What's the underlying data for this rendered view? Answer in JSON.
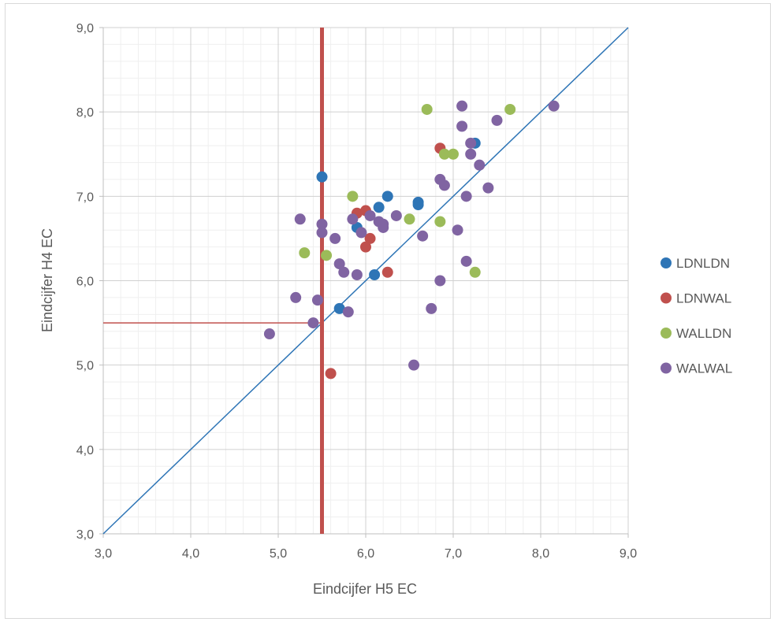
{
  "chart_data": {
    "type": "scatter",
    "title": "",
    "xlabel": "Eindcijfer H5 EC",
    "ylabel": "Eindcijfer H4 EC",
    "xlim": [
      3.0,
      9.0
    ],
    "ylim": [
      3.0,
      9.0
    ],
    "x_ticks": [
      "3,0",
      "4,0",
      "5,0",
      "6,0",
      "7,0",
      "8,0",
      "9,0"
    ],
    "y_ticks": [
      "3,0",
      "4,0",
      "5,0",
      "6,0",
      "7,0",
      "8,0",
      "9,0"
    ],
    "grid": true,
    "legend_position": "right",
    "reference_lines": {
      "diagonal": {
        "from": [
          3.0,
          3.0
        ],
        "to": [
          9.0,
          9.0
        ],
        "color": "#2e75b6"
      },
      "vertical_threshold_x": 5.5,
      "horizontal_threshold_y": 5.5,
      "threshold_color": "#c0504d"
    },
    "series": [
      {
        "name": "LDNLDN",
        "color": "#2e75b6",
        "points": [
          [
            5.5,
            7.23
          ],
          [
            5.7,
            5.67
          ],
          [
            5.9,
            6.63
          ],
          [
            6.1,
            6.07
          ],
          [
            6.15,
            6.87
          ],
          [
            6.25,
            7.0
          ],
          [
            6.6,
            6.93
          ],
          [
            6.6,
            6.9
          ],
          [
            7.25,
            7.63
          ]
        ]
      },
      {
        "name": "LDNWAL",
        "color": "#c0504d",
        "points": [
          [
            5.6,
            4.9
          ],
          [
            5.9,
            6.8
          ],
          [
            6.0,
            6.83
          ],
          [
            6.05,
            6.5
          ],
          [
            6.0,
            6.4
          ],
          [
            6.25,
            6.1
          ],
          [
            6.85,
            7.57
          ]
        ]
      },
      {
        "name": "WALLDN",
        "color": "#9bbb59",
        "points": [
          [
            5.3,
            6.33
          ],
          [
            5.55,
            6.3
          ],
          [
            5.85,
            7.0
          ],
          [
            6.5,
            6.73
          ],
          [
            6.7,
            8.03
          ],
          [
            6.85,
            6.7
          ],
          [
            6.9,
            7.5
          ],
          [
            7.0,
            7.5
          ],
          [
            7.25,
            6.1
          ],
          [
            7.65,
            8.03
          ]
        ]
      },
      {
        "name": "WALWAL",
        "color": "#8064a2",
        "points": [
          [
            4.9,
            5.37
          ],
          [
            5.2,
            5.8
          ],
          [
            5.25,
            6.73
          ],
          [
            5.4,
            5.5
          ],
          [
            5.45,
            5.77
          ],
          [
            5.5,
            6.67
          ],
          [
            5.5,
            6.57
          ],
          [
            5.65,
            6.5
          ],
          [
            5.7,
            6.2
          ],
          [
            5.75,
            6.1
          ],
          [
            5.8,
            5.63
          ],
          [
            5.85,
            6.73
          ],
          [
            5.9,
            6.07
          ],
          [
            5.95,
            6.57
          ],
          [
            6.05,
            6.77
          ],
          [
            6.15,
            6.7
          ],
          [
            6.2,
            6.67
          ],
          [
            6.2,
            6.63
          ],
          [
            6.35,
            6.77
          ],
          [
            6.55,
            5.0
          ],
          [
            6.65,
            6.53
          ],
          [
            6.75,
            5.67
          ],
          [
            6.85,
            6.0
          ],
          [
            6.85,
            7.2
          ],
          [
            6.9,
            7.13
          ],
          [
            7.05,
            6.6
          ],
          [
            7.1,
            8.07
          ],
          [
            7.1,
            7.83
          ],
          [
            7.15,
            7.0
          ],
          [
            7.15,
            6.23
          ],
          [
            7.2,
            7.63
          ],
          [
            7.2,
            7.5
          ],
          [
            7.3,
            7.37
          ],
          [
            7.4,
            7.1
          ],
          [
            7.5,
            7.9
          ],
          [
            8.15,
            8.07
          ]
        ]
      }
    ]
  }
}
